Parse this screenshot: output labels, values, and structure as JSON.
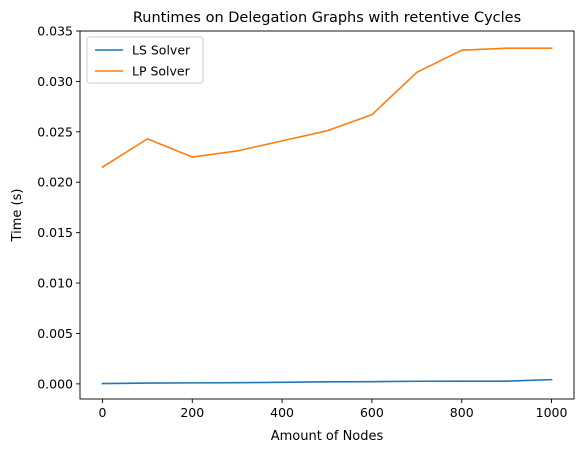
{
  "chart_data": {
    "type": "line",
    "title": "Runtimes on Delegation Graphs with retentive Cycles",
    "xlabel": "Amount of Nodes",
    "ylabel": "Time (s)",
    "xlim": [
      -50,
      1050
    ],
    "ylim": [
      -0.0015,
      0.035
    ],
    "xticks": [
      0,
      200,
      400,
      600,
      800,
      1000
    ],
    "xtick_labels": [
      "0",
      "200",
      "400",
      "600",
      "800",
      "1000"
    ],
    "yticks": [
      0.0,
      0.005,
      0.01,
      0.015,
      0.02,
      0.025,
      0.03,
      0.035
    ],
    "ytick_labels": [
      "0.000",
      "0.005",
      "0.010",
      "0.015",
      "0.020",
      "0.025",
      "0.030",
      "0.035"
    ],
    "x": [
      0,
      100,
      200,
      300,
      400,
      500,
      600,
      700,
      800,
      900,
      1000
    ],
    "series": [
      {
        "name": "LS Solver",
        "color": "#1f77b4",
        "values": [
          3e-05,
          8e-05,
          0.0001,
          0.00012,
          0.00015,
          0.0002,
          0.00022,
          0.00026,
          0.00027,
          0.00027,
          0.00042
        ]
      },
      {
        "name": "LP Solver",
        "color": "#ff7f0e",
        "values": [
          0.0215,
          0.0243,
          0.0225,
          0.0231,
          0.0241,
          0.0251,
          0.0267,
          0.0309,
          0.0331,
          0.0333,
          0.0333
        ]
      }
    ],
    "grid": false,
    "legend": "top-left"
  }
}
